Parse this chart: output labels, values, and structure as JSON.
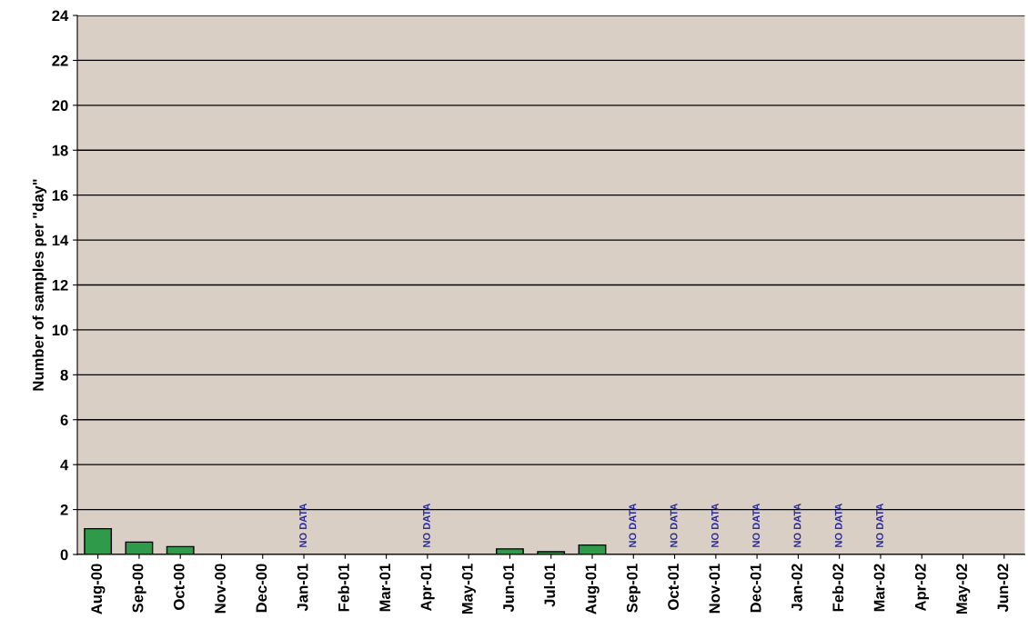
{
  "chart_data": {
    "type": "bar",
    "ylabel": "Number of samples per \"day\"",
    "categories": [
      "Aug-00",
      "Sep-00",
      "Oct-00",
      "Nov-00",
      "Dec-00",
      "Jan-01",
      "Feb-01",
      "Mar-01",
      "Apr-01",
      "May-01",
      "Jun-01",
      "Jul-01",
      "Aug-01",
      "Sep-01",
      "Oct-01",
      "Nov-01",
      "Dec-01",
      "Jan-02",
      "Feb-02",
      "Mar-02",
      "Apr-02",
      "May-02",
      "Jun-02"
    ],
    "values": [
      1.15,
      0.55,
      0.35,
      null,
      null,
      null,
      null,
      null,
      null,
      null,
      0.25,
      0.12,
      0.42,
      null,
      null,
      null,
      null,
      null,
      null,
      null,
      null,
      null,
      null
    ],
    "value_labels": [
      null,
      null,
      null,
      null,
      null,
      "NO DATA",
      null,
      null,
      "NO DATA",
      null,
      null,
      null,
      null,
      "NO DATA",
      "NO DATA",
      "NO DATA",
      "NO DATA",
      "NO DATA",
      "NO DATA",
      "NO DATA",
      null,
      null,
      null
    ],
    "color": "#2e9a4a",
    "ylim": [
      0,
      24
    ],
    "yticks": [
      0,
      2,
      4,
      6,
      8,
      10,
      12,
      14,
      16,
      18,
      20,
      22,
      24
    ],
    "grid": "y"
  }
}
